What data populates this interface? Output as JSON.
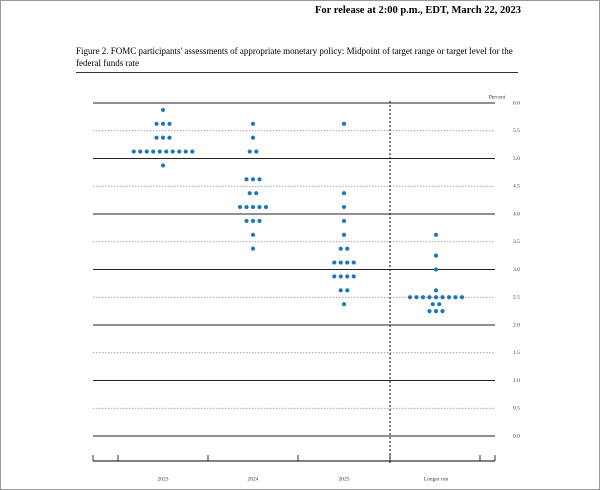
{
  "header": "For release at 2:00 p.m., EDT, March 22, 2023",
  "chart_data": {
    "type": "dotplot",
    "title": "Figure 2. FOMC participants' assessments of appropriate monetary policy: Midpoint of target range or target level for the federal funds rate",
    "ylabel": "Percent",
    "categories": [
      "2023",
      "2024",
      "2025",
      "Longer run"
    ],
    "color": "#1f77b4",
    "dots": [
      [
        {
          "value": 5.875,
          "count": 1
        },
        {
          "value": 5.625,
          "count": 3
        },
        {
          "value": 5.375,
          "count": 3
        },
        {
          "value": 5.125,
          "count": 10
        },
        {
          "value": 4.875,
          "count": 1
        }
      ],
      [
        {
          "value": 5.625,
          "count": 1
        },
        {
          "value": 5.375,
          "count": 1
        },
        {
          "value": 5.125,
          "count": 2
        },
        {
          "value": 4.625,
          "count": 3
        },
        {
          "value": 4.375,
          "count": 2
        },
        {
          "value": 4.125,
          "count": 5
        },
        {
          "value": 3.875,
          "count": 3
        },
        {
          "value": 3.625,
          "count": 1
        },
        {
          "value": 3.375,
          "count": 1
        }
      ],
      [
        {
          "value": 5.625,
          "count": 1
        },
        {
          "value": 4.375,
          "count": 1
        },
        {
          "value": 4.125,
          "count": 1
        },
        {
          "value": 3.875,
          "count": 1
        },
        {
          "value": 3.625,
          "count": 1
        },
        {
          "value": 3.375,
          "count": 2
        },
        {
          "value": 3.125,
          "count": 4
        },
        {
          "value": 2.875,
          "count": 4
        },
        {
          "value": 2.625,
          "count": 2
        },
        {
          "value": 2.375,
          "count": 1
        }
      ],
      [
        {
          "value": 3.625,
          "count": 1
        },
        {
          "value": 3.25,
          "count": 1
        },
        {
          "value": 3.0,
          "count": 1
        },
        {
          "value": 2.625,
          "count": 1
        },
        {
          "value": 2.5,
          "count": 9
        },
        {
          "value": 2.375,
          "count": 2
        },
        {
          "value": 2.25,
          "count": 3
        }
      ]
    ],
    "ylim": [
      0,
      6
    ],
    "yticks": [
      {
        "value": 0,
        "label": "0.0"
      },
      {
        "value": 0.5,
        "label": "0.5"
      },
      {
        "value": 1,
        "label": "1.0"
      },
      {
        "value": 1.5,
        "label": "1.5"
      },
      {
        "value": 2,
        "label": "2.0"
      },
      {
        "value": 2.5,
        "label": "2.5"
      },
      {
        "value": 3,
        "label": "3.0"
      },
      {
        "value": 3.5,
        "label": "3.5"
      },
      {
        "value": 4,
        "label": "4.0"
      },
      {
        "value": 4.5,
        "label": "4.5"
      },
      {
        "value": 5,
        "label": "5.0"
      },
      {
        "value": 5.5,
        "label": "5.5"
      },
      {
        "value": 6,
        "label": "6.0"
      }
    ],
    "grid": true
  }
}
